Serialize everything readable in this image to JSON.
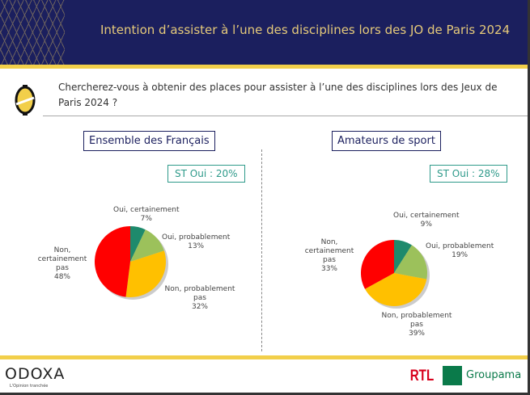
{
  "header": {
    "title": "Intention d’assister à l’une des disciplines lors des JO de Paris 2024"
  },
  "question": "Chercherez-vous à obtenir des places pour assister à l’une des disciplines lors des Jeux de Paris 2024 ?",
  "footer": {
    "brand": "ODOXA",
    "tagline": "L'Opinion tranchée",
    "partner1": "RTL",
    "partner2": "Groupama"
  },
  "colors": {
    "oui_certainement": "#1e8a6c",
    "oui_probablement": "#9cc15b",
    "non_probablement": "#ffc000",
    "non_certainement": "#ff0000"
  },
  "chart_data": [
    {
      "type": "pie",
      "title": "Ensemble des Français",
      "summary": "ST Oui : 20%",
      "slices": [
        {
          "label": "Oui, certainement",
          "value": 7,
          "display": "7%"
        },
        {
          "label": "Oui, probablement",
          "value": 13,
          "display": "13%"
        },
        {
          "label": "Non, probablement pas",
          "value": 32,
          "display": "32%"
        },
        {
          "label": "Non, certainement pas",
          "value": 48,
          "display": "48%"
        }
      ]
    },
    {
      "type": "pie",
      "title": "Amateurs de sport",
      "summary": "ST Oui : 28%",
      "slices": [
        {
          "label": "Oui, certainement",
          "value": 9,
          "display": "9%"
        },
        {
          "label": "Oui, probablement",
          "value": 19,
          "display": "19%"
        },
        {
          "label": "Non, probablement pas",
          "value": 39,
          "display": "39%"
        },
        {
          "label": "Non, certainement pas",
          "value": 33,
          "display": "33%"
        }
      ]
    }
  ]
}
